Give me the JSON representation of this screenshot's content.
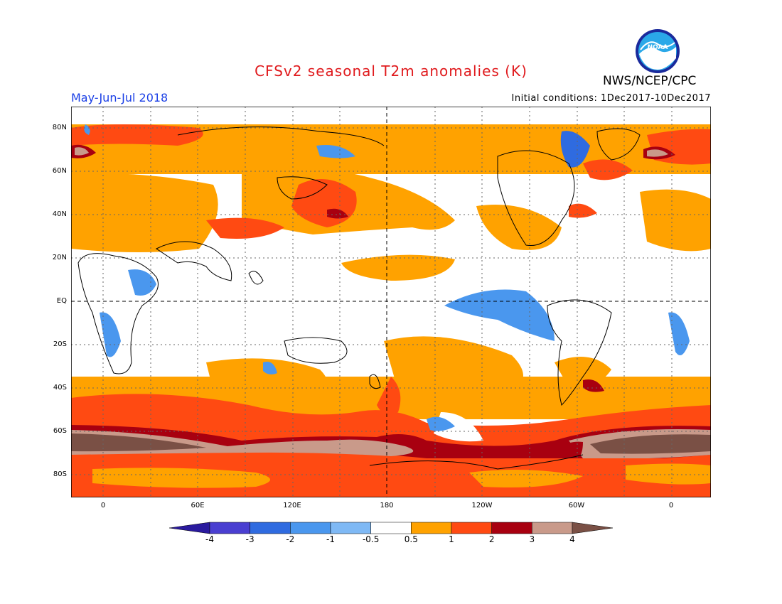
{
  "header": {
    "title": "CFSv2 seasonal T2m anomalies (K)",
    "season": "May-Jun-Jul 2018",
    "initial_conditions": "Initial conditions: 1Dec2017-10Dec2017",
    "agency": "NWS/NCEP/CPC",
    "logo_text": "NOAA"
  },
  "axes": {
    "lat_labels": [
      "80N",
      "60N",
      "40N",
      "20N",
      "EQ",
      "20S",
      "40S",
      "60S",
      "80S"
    ],
    "lon_labels": [
      "0",
      "60E",
      "120E",
      "180",
      "120W",
      "60W",
      "0"
    ]
  },
  "colorbar": {
    "labels": [
      "-4",
      "-3",
      "-2",
      "-1",
      "-0.5",
      "0.5",
      "1",
      "2",
      "3",
      "4"
    ],
    "colors": [
      "#2a1a9e",
      "#4a3fd1",
      "#2f6be0",
      "#4a97ee",
      "#7fb9f5",
      "#ffffff",
      "#ffa200",
      "#ff4a12",
      "#a80010",
      "#c99a8a",
      "#7a5045"
    ]
  }
}
